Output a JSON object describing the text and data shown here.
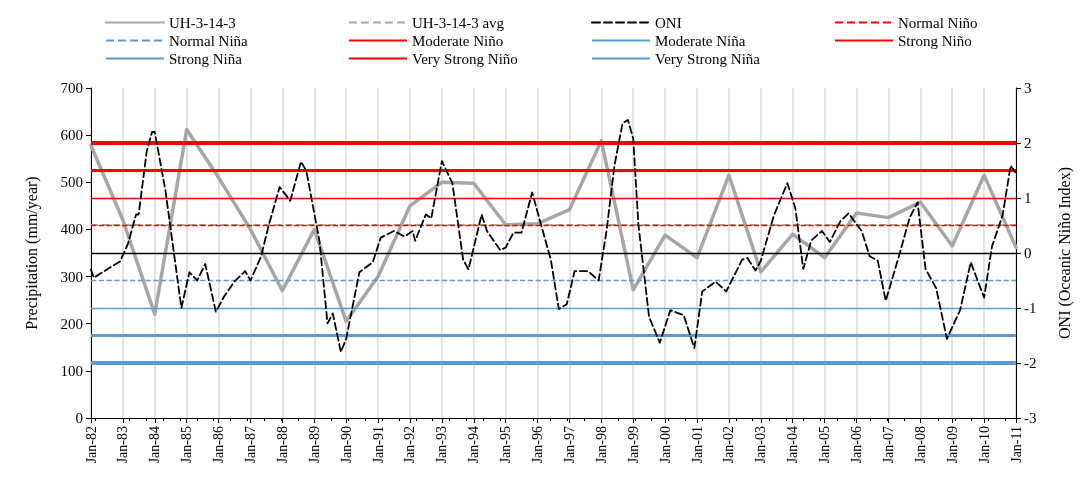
{
  "chart_data": {
    "type": "line",
    "ylabel": "Precipitation (mm/year)",
    "y2label": "ONI (Oceanic Niño Index)",
    "xlim": [
      "1982-01",
      "2011-01"
    ],
    "xticks": [
      {
        "value": "1982-01",
        "label": "Jan-82"
      },
      {
        "value": "1983-01",
        "label": "Jan-83"
      },
      {
        "value": "1984-01",
        "label": "Jan-84"
      },
      {
        "value": "1985-01",
        "label": "Jan-85"
      },
      {
        "value": "1986-01",
        "label": "Jan-86"
      },
      {
        "value": "1987-01",
        "label": "Jan-87"
      },
      {
        "value": "1988-01",
        "label": "Jan-88"
      },
      {
        "value": "1989-01",
        "label": "Jan-89"
      },
      {
        "value": "1990-01",
        "label": "Jan-90"
      },
      {
        "value": "1991-01",
        "label": "Jan-91"
      },
      {
        "value": "1992-01",
        "label": "Jan-92"
      },
      {
        "value": "1993-01",
        "label": "Jan-93"
      },
      {
        "value": "1994-01",
        "label": "Jan-94"
      },
      {
        "value": "1995-01",
        "label": "Jan-95"
      },
      {
        "value": "1996-01",
        "label": "Jan-96"
      },
      {
        "value": "1997-01",
        "label": "Jan-97"
      },
      {
        "value": "1998-01",
        "label": "Jan-98"
      },
      {
        "value": "1999-01",
        "label": "Jan-99"
      },
      {
        "value": "2000-01",
        "label": "Jan-00"
      },
      {
        "value": "2001-01",
        "label": "Jan-01"
      },
      {
        "value": "2002-01",
        "label": "Jan-02"
      },
      {
        "value": "2003-01",
        "label": "Jan-03"
      },
      {
        "value": "2004-01",
        "label": "Jan-04"
      },
      {
        "value": "2005-01",
        "label": "Jan-05"
      },
      {
        "value": "2006-01",
        "label": "Jan-06"
      },
      {
        "value": "2007-01",
        "label": "Jan-07"
      },
      {
        "value": "2008-01",
        "label": "Jan-08"
      },
      {
        "value": "2009-01",
        "label": "Jan-09"
      },
      {
        "value": "2010-01",
        "label": "Jan-10"
      },
      {
        "value": "2011-01",
        "label": "Jan-11"
      }
    ],
    "ylim": [
      0,
      700
    ],
    "yticks": [
      0,
      100,
      200,
      300,
      400,
      500,
      600,
      700
    ],
    "y2lim": [
      -3,
      3
    ],
    "y2ticks": [
      -3,
      -2,
      -1,
      0,
      1,
      2,
      3
    ],
    "grid": "x",
    "legend": "top",
    "marker": "none",
    "series": [
      {
        "name": "UH-3-14-3",
        "color": "#a6a6a6",
        "line_style": "solid",
        "x": [
          "1982-01",
          "1983-01",
          "1984-01",
          "1985-01",
          "1986-01",
          "1987-01",
          "1988-01",
          "1989-01",
          "1990-01",
          "1991-01",
          "1992-01",
          "1993-01",
          "1994-01",
          "1995-01",
          "1996-01",
          "1997-01",
          "1998-01",
          "1999-01",
          "2000-01",
          "2001-01",
          "2002-01",
          "2003-01",
          "2004-01",
          "2005-01",
          "2006-01",
          "2007-01",
          "2008-01",
          "2009-01",
          "2010-01",
          "2011-01"
        ],
        "values": [
          578,
          420,
          220,
          612,
          510,
          400,
          270,
          400,
          205,
          300,
          450,
          500,
          498,
          410,
          412,
          442,
          588,
          272,
          388,
          340,
          515,
          310,
          390,
          340,
          435,
          425,
          458,
          365,
          515,
          362
        ]
      },
      {
        "name": "ONI",
        "color": "#000000",
        "line_style": "dashed",
        "axis": "y2",
        "x": [
          "1982-01",
          "1982-02",
          "1982-12",
          "1983-03",
          "1983-06",
          "1983-07",
          "1983-10",
          "1983-12",
          "1984-01",
          "1984-05",
          "1984-11",
          "1985-02",
          "1985-05",
          "1985-08",
          "1985-12",
          "1986-03",
          "1986-07",
          "1986-11",
          "1987-01",
          "1987-05",
          "1987-08",
          "1987-12",
          "1988-04",
          "1988-08",
          "1988-10",
          "1989-03",
          "1989-06",
          "1989-08",
          "1989-11",
          "1990-01",
          "1990-06",
          "1990-11",
          "1991-02",
          "1991-07",
          "1991-11",
          "1992-02",
          "1992-03",
          "1992-07",
          "1992-09",
          "1993-01",
          "1993-05",
          "1993-09",
          "1993-11",
          "1994-04",
          "1994-06",
          "1994-11",
          "1995-01",
          "1995-04",
          "1995-07",
          "1995-11",
          "1996-02",
          "1996-06",
          "1996-09",
          "1996-12",
          "1997-03",
          "1997-08",
          "1997-12",
          "1998-03",
          "1998-06",
          "1998-09",
          "1998-11",
          "1999-01",
          "1999-03",
          "1999-07",
          "1999-11",
          "2000-03",
          "2000-08",
          "2000-12",
          "2001-03",
          "2001-08",
          "2001-12",
          "2002-06",
          "2002-08",
          "2002-11",
          "2003-01",
          "2003-06",
          "2003-11",
          "2004-02",
          "2004-05",
          "2004-08",
          "2004-12",
          "2005-03",
          "2005-07",
          "2005-10",
          "2006-03",
          "2006-06",
          "2006-09",
          "2006-12",
          "2007-05",
          "2007-09",
          "2007-12",
          "2008-03",
          "2008-07",
          "2008-11",
          "2009-04",
          "2009-08",
          "2010-01",
          "2010-04",
          "2010-08",
          "2010-11",
          "2011-01"
        ],
        "values": [
          -0.3,
          -0.45,
          -0.15,
          0.17,
          0.7,
          0.7,
          1.85,
          2.2,
          2.2,
          1.15,
          -1.0,
          -0.35,
          -0.5,
          -0.2,
          -1.07,
          -0.8,
          -0.52,
          -0.33,
          -0.5,
          -0.07,
          0.52,
          1.2,
          0.95,
          1.66,
          1.5,
          0.22,
          -1.28,
          -1.1,
          -1.8,
          -1.56,
          -0.35,
          -0.17,
          0.28,
          0.4,
          0.3,
          0.4,
          0.22,
          0.7,
          0.63,
          1.67,
          1.27,
          -0.12,
          -0.3,
          0.7,
          0.4,
          0.05,
          0.1,
          0.37,
          0.37,
          1.1,
          0.57,
          -0.12,
          -1.02,
          -0.93,
          -0.33,
          -0.33,
          -0.5,
          0.4,
          1.6,
          2.36,
          2.42,
          2.08,
          0.52,
          -1.16,
          -1.63,
          -1.04,
          -1.13,
          -1.73,
          -0.7,
          -0.52,
          -0.7,
          -0.12,
          -0.09,
          -0.32,
          -0.14,
          0.69,
          1.27,
          0.81,
          -0.29,
          0.23,
          0.4,
          0.2,
          0.58,
          0.72,
          0.4,
          -0.06,
          -0.14,
          -0.87,
          -0.06,
          0.64,
          0.92,
          -0.29,
          -0.64,
          -1.56,
          -1.04,
          -0.17,
          -0.81,
          0.12,
          0.69,
          1.59,
          1.45
        ]
      }
    ],
    "ref_lines": [
      {
        "axis": "y",
        "value": 410,
        "label": "UH-3-14-3 avg",
        "color": "#a6a6a6",
        "line_style": "dashed"
      },
      {
        "axis": "y2",
        "value": 0.5,
        "label": "Normal Niño",
        "color": "#ff0000",
        "line_style": "dashed"
      },
      {
        "axis": "y2",
        "value": -0.5,
        "label": "Normal Niña",
        "color": "#5b9bd5",
        "line_style": "dashed"
      },
      {
        "axis": "y2",
        "value": 1,
        "label": "Moderate Niño",
        "color": "#ff0000",
        "line_style": "solid"
      },
      {
        "axis": "y2",
        "value": -1,
        "label": "Moderate Niña",
        "color": "#5b9bd5",
        "line_style": "solid"
      },
      {
        "axis": "y2",
        "value": 1.5,
        "label": "Strong Niño",
        "color": "#ff0000",
        "line_style": "solid"
      },
      {
        "axis": "y2",
        "value": -1.5,
        "label": "Strong Niña",
        "color": "#5b9bd5",
        "line_style": "solid"
      },
      {
        "axis": "y2",
        "value": 2,
        "label": "Very Strong Niño",
        "color": "#ff0000",
        "line_style": "solid"
      },
      {
        "axis": "y2",
        "value": -2,
        "label": "Very Strong Niña",
        "color": "#5b9bd5",
        "line_style": "solid"
      },
      {
        "axis": "y2",
        "value": 0,
        "color": "#000000",
        "line_style": "solid"
      }
    ]
  }
}
